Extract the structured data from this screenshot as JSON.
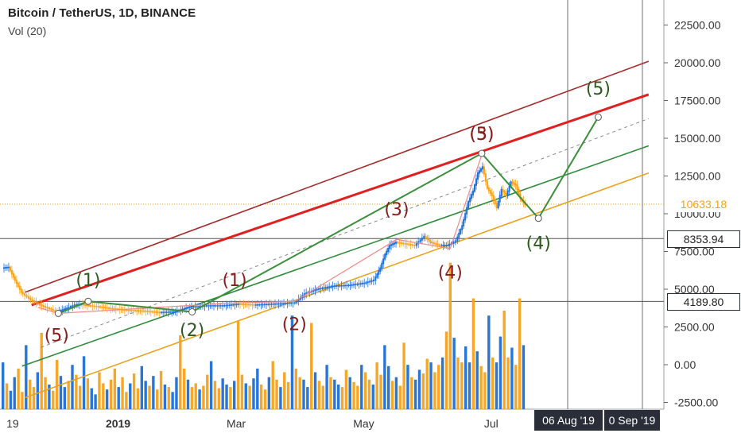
{
  "chart_title": "Bitcoin / TetherUS, 1D, BINANCE",
  "indicator_label": "Vol (20)",
  "y_axis": {
    "ticks": [
      -2500,
      0,
      2500,
      5000,
      7500,
      10000,
      12500,
      15000,
      17500,
      20000,
      22500
    ],
    "tick_labels": [
      "-2500.00",
      "0.00",
      "2500.00",
      "5000.00",
      "7500.00",
      "10000.00",
      "12500.00",
      "15000.00",
      "17500.00",
      "20000.00",
      "22500.00"
    ]
  },
  "x_axis": {
    "tick_labels": [
      "19",
      "2019",
      "Mar",
      "May",
      "Jul"
    ]
  },
  "price_badges": [
    {
      "label": "10633.18",
      "value": 10633.18,
      "style": "current",
      "color": "#f7a21b"
    },
    {
      "label": "8353.94",
      "value": 8353.94,
      "style": "level",
      "color": "#2a2e39"
    },
    {
      "label": "4189.80",
      "value": 4189.8,
      "style": "level",
      "color": "#2a2e39"
    }
  ],
  "time_badges": [
    {
      "label": "06 Aug '19"
    },
    {
      "label": "0 Sep '19"
    }
  ],
  "wave_labels": [
    {
      "text": "(1)",
      "t": 54,
      "v": 5200,
      "color": "#2d5a1f"
    },
    {
      "text": "(5)",
      "t": 34,
      "v": 1550,
      "color": "#8b1a1a"
    },
    {
      "text": "(1)",
      "t": 147,
      "v": 5200,
      "color": "#8b1a1a"
    },
    {
      "text": "(2)",
      "t": 120,
      "v": 1900,
      "color": "#2d5a1f"
    },
    {
      "text": "(2)",
      "t": 185,
      "v": 2300,
      "color": "#8b1a1a"
    },
    {
      "text": "(3)",
      "t": 250,
      "v": 9900,
      "color": "#8b1a1a"
    },
    {
      "text": "(4)",
      "t": 284,
      "v": 5700,
      "color": "#8b1a1a"
    },
    {
      "text": "(3)",
      "t": 304,
      "v": 14900,
      "color": "#8b1a1a"
    },
    {
      "text": "(5)",
      "t": 304,
      "v": 14900,
      "color": "#8b1a1a"
    },
    {
      "text": "(4)",
      "t": 340,
      "v": 7650,
      "color": "#2d5a1f"
    },
    {
      "text": "(5)",
      "t": 378,
      "v": 17900,
      "color": "#2d5a1f"
    }
  ],
  "chart_data": {
    "type": "candlestick",
    "series": [
      {
        "name": "BTCUSDT price",
        "points": [
          [
            0,
            6400
          ],
          [
            4,
            6450
          ],
          [
            8,
            5600
          ],
          [
            12,
            4800
          ],
          [
            18,
            4300
          ],
          [
            24,
            3950
          ],
          [
            30,
            3700
          ],
          [
            35,
            3500
          ],
          [
            40,
            3700
          ],
          [
            46,
            3950
          ],
          [
            50,
            4000
          ],
          [
            55,
            3900
          ],
          [
            60,
            3850
          ],
          [
            70,
            3700
          ],
          [
            80,
            3600
          ],
          [
            90,
            3550
          ],
          [
            100,
            3450
          ],
          [
            110,
            3500
          ],
          [
            118,
            3800
          ],
          [
            125,
            3850
          ],
          [
            130,
            3900
          ],
          [
            140,
            3900
          ],
          [
            150,
            4000
          ],
          [
            160,
            3950
          ],
          [
            170,
            4000
          ],
          [
            180,
            4050
          ],
          [
            186,
            4100
          ],
          [
            192,
            4700
          ],
          [
            200,
            5000
          ],
          [
            210,
            5200
          ],
          [
            220,
            5250
          ],
          [
            230,
            5400
          ],
          [
            236,
            5600
          ],
          [
            240,
            6400
          ],
          [
            243,
            7300
          ],
          [
            246,
            7900
          ],
          [
            250,
            8100
          ],
          [
            256,
            8000
          ],
          [
            262,
            7900
          ],
          [
            268,
            8500
          ],
          [
            272,
            8100
          ],
          [
            278,
            7900
          ],
          [
            283,
            7900
          ],
          [
            288,
            8200
          ],
          [
            292,
            9200
          ],
          [
            296,
            10800
          ],
          [
            299,
            11500
          ],
          [
            302,
            12700
          ],
          [
            305,
            13100
          ],
          [
            308,
            11700
          ],
          [
            311,
            11200
          ],
          [
            314,
            10400
          ],
          [
            317,
            11600
          ],
          [
            320,
            11200
          ],
          [
            323,
            12100
          ],
          [
            326,
            11900
          ],
          [
            329,
            11000
          ],
          [
            332,
            10600
          ]
        ]
      },
      {
        "name": "Vol (20)",
        "values": [
          380,
          210,
          150,
          260,
          330,
          140,
          520,
          240,
          180,
          300,
          620,
          260,
          200,
          150,
          400,
          270,
          180,
          230,
          360,
          280,
          190,
          430,
          250,
          170,
          120,
          300,
          210,
          160,
          240,
          330,
          180,
          260,
          140,
          210,
          290,
          170,
          350,
          230,
          190,
          270,
          160,
          310,
          200,
          180,
          140,
          260,
          600,
          330,
          240,
          180,
          210,
          160,
          190,
          280,
          390,
          230,
          170,
          250,
          200,
          180,
          230,
          720,
          280,
          210,
          190,
          250,
          330,
          200,
          160,
          260,
          390,
          240,
          180,
          300,
          220,
          760,
          330,
          260,
          240,
          180,
          700,
          300,
          230,
          190,
          360,
          260,
          240,
          200,
          180,
          320,
          260,
          220,
          190,
          360,
          300,
          240,
          200,
          380,
          280,
          520,
          350,
          230,
          260,
          190,
          540,
          360,
          260,
          240,
          320,
          290,
          410,
          380,
          300,
          360,
          420,
          630,
          1190,
          580,
          420,
          380,
          510,
          380,
          900,
          470,
          350,
          300,
          760,
          420,
          380,
          590,
          800,
          420,
          500,
          360,
          900,
          520
        ]
      }
    ],
    "overlays": {
      "channel_lines": [
        {
          "name": "upper channel",
          "color": "#a52a2a",
          "from": [
            14,
            4800
          ],
          "to": [
            410,
            20100
          ]
        },
        {
          "name": "red trend",
          "color": "#e02020",
          "from": [
            18,
            3950
          ],
          "to": [
            410,
            17900
          ]
        },
        {
          "name": "midline",
          "color": "#888888",
          "dashed": true,
          "from": [
            24,
            1150
          ],
          "to": [
            410,
            16300
          ]
        },
        {
          "name": "green trend",
          "color": "#2e8b3a",
          "from": [
            12,
            -90
          ],
          "to": [
            410,
            14500
          ]
        },
        {
          "name": "orange trend",
          "color": "#e8a320",
          "from": [
            14,
            -2180
          ],
          "to": [
            410,
            12700
          ]
        }
      ],
      "green_wave": [
        [
          35,
          3400
        ],
        [
          54,
          4200
        ],
        [
          120,
          3500
        ],
        [
          304,
          14000
        ],
        [
          340,
          9700
        ],
        [
          378,
          16400
        ]
      ],
      "red_wave": [
        [
          22,
          3800
        ],
        [
          35,
          3400
        ],
        [
          147,
          4100
        ],
        [
          185,
          4190
        ],
        [
          250,
          8300
        ],
        [
          284,
          7700
        ],
        [
          304,
          13900
        ]
      ],
      "horizontal_levels": [
        8353.94,
        4189.8,
        10633.18
      ],
      "time_markers": [
        "06 Aug '19",
        "0 Sep '19"
      ]
    }
  }
}
